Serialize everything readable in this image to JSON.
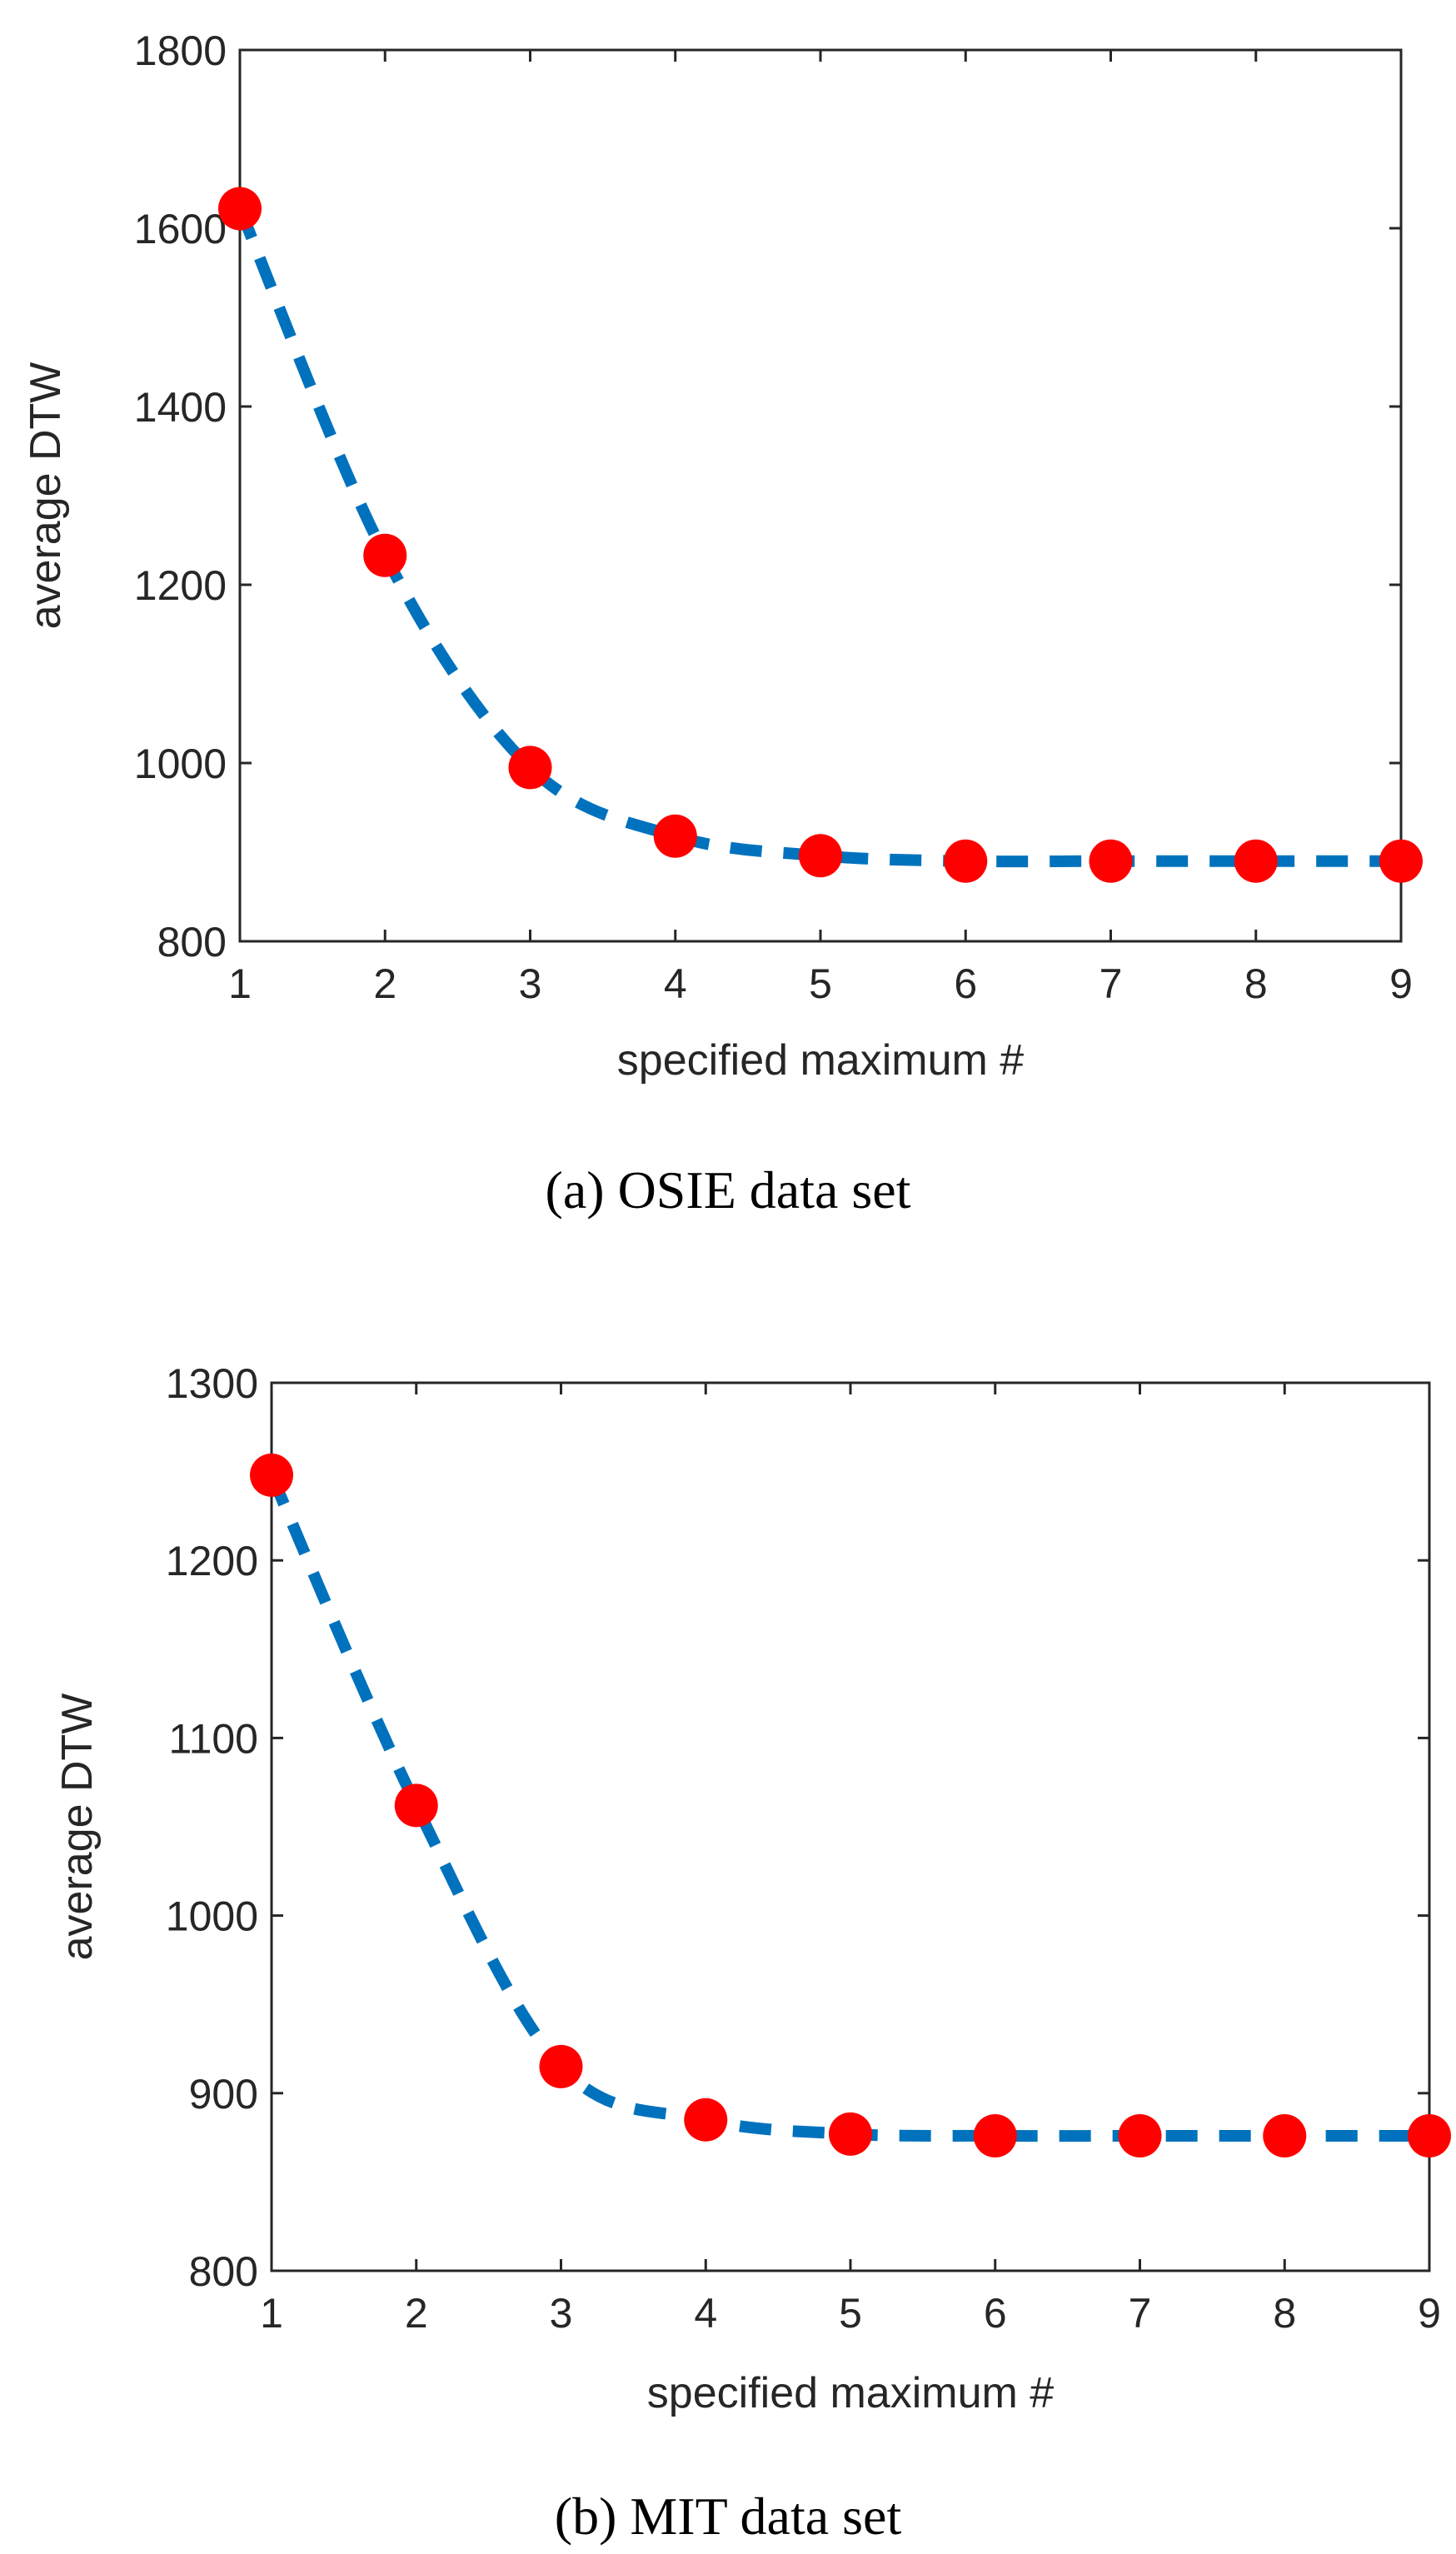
{
  "chart_data": [
    {
      "type": "line",
      "caption": "(a) OSIE data set",
      "xlabel": "specified maximum #",
      "ylabel": "average DTW",
      "xlim": [
        1,
        9
      ],
      "ylim": [
        800,
        1800
      ],
      "xticks": [
        1,
        2,
        3,
        4,
        5,
        6,
        7,
        8,
        9
      ],
      "yticks": [
        800,
        1000,
        1200,
        1400,
        1600,
        1800
      ],
      "x": [
        1,
        2,
        3,
        4,
        5,
        6,
        7,
        8,
        9
      ],
      "series": [
        {
          "name": "average DTW",
          "values": [
            1622,
            1233,
            995,
            918,
            896,
            890,
            890,
            890,
            890
          ]
        }
      ],
      "line_color": "#0072BD",
      "marker_color": "#FF0000"
    },
    {
      "type": "line",
      "caption": "(b) MIT data set",
      "xlabel": "specified maximum #",
      "ylabel": "average DTW",
      "xlim": [
        1,
        9
      ],
      "ylim": [
        800,
        1300
      ],
      "xticks": [
        1,
        2,
        3,
        4,
        5,
        6,
        7,
        8,
        9
      ],
      "yticks": [
        800,
        900,
        1000,
        1100,
        1200,
        1300
      ],
      "x": [
        1,
        2,
        3,
        4,
        5,
        6,
        7,
        8,
        9
      ],
      "series": [
        {
          "name": "average DTW",
          "values": [
            1248,
            1062,
            915,
            885,
            877,
            876,
            876,
            876,
            876
          ]
        }
      ],
      "line_color": "#0072BD",
      "marker_color": "#FF0000"
    }
  ]
}
